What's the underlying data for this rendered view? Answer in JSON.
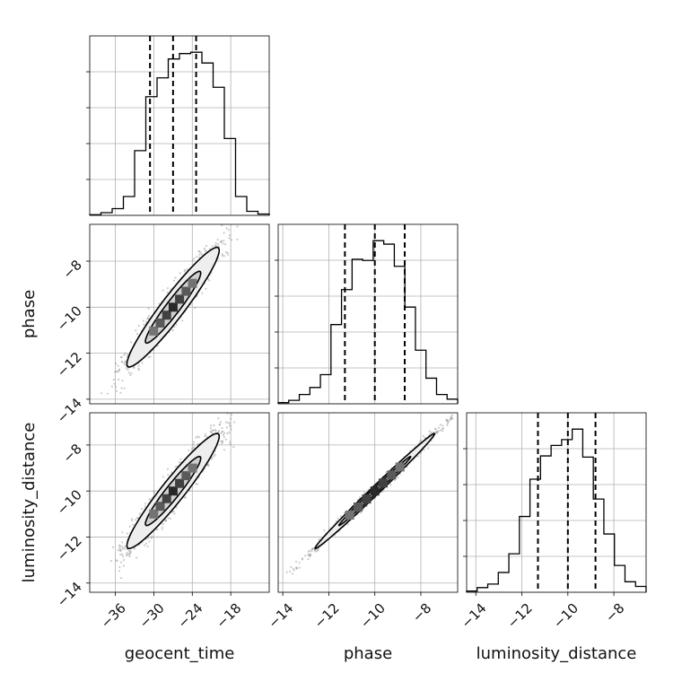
{
  "chart_data": {
    "type": "corner",
    "parameters": [
      "geocent_time",
      "phase",
      "luminosity_distance"
    ],
    "axis_labels": [
      "geocent_time",
      "phase",
      "luminosity_distance"
    ],
    "ranges": [
      [
        -40,
        -12
      ],
      [
        -14.2,
        -6.4
      ],
      [
        -14.4,
        -6.6
      ]
    ],
    "ticks": [
      [
        -36,
        -30,
        -24,
        -18
      ],
      [
        -14,
        -12,
        -10,
        -8
      ],
      [
        -14,
        -12,
        -10,
        -8
      ]
    ],
    "tick_labels": [
      [
        "−36",
        "−30",
        "−24",
        "−18"
      ],
      [
        "−14",
        "−12",
        "−10",
        "−8"
      ],
      [
        "−14",
        "−12",
        "−10",
        "−8"
      ]
    ],
    "quantiles": [
      [
        -30.6,
        -27.0,
        -23.4
      ],
      [
        -11.3,
        -10.0,
        -8.7
      ],
      [
        -11.3,
        -10.0,
        -8.8
      ]
    ],
    "grid": true,
    "histograms": [
      {
        "parameter": "geocent_time",
        "edges_range": [
          -40,
          -12
        ],
        "counts": [
          0.5,
          2,
          5,
          14,
          48,
          88,
          102,
          116,
          120,
          121,
          113,
          95,
          57,
          14,
          3,
          1
        ]
      },
      {
        "parameter": "phase",
        "edges_range": [
          -14.2,
          -6.4
        ],
        "counts": [
          1,
          3,
          8,
          14,
          25,
          68,
          98,
          124,
          123,
          140,
          137,
          118,
          83,
          46,
          22,
          8,
          4
        ]
      },
      {
        "parameter": "luminosity_distance",
        "edges_range": [
          -14.4,
          -6.6
        ],
        "counts": [
          1,
          4,
          7,
          17,
          33,
          65,
          97,
          117,
          126,
          131,
          140,
          116,
          80,
          50,
          23,
          9,
          5
        ]
      }
    ],
    "joint_panels": [
      {
        "x": "geocent_time",
        "y": "phase",
        "correlation": 0.95
      },
      {
        "x": "geocent_time",
        "y": "luminosity_distance",
        "correlation": 0.95
      },
      {
        "x": "phase",
        "y": "luminosity_distance",
        "correlation": 0.995
      }
    ]
  }
}
